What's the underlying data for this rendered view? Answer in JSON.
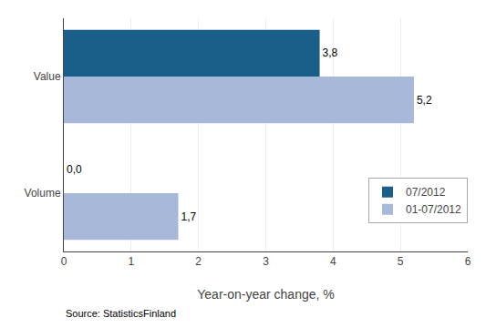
{
  "chart_data": {
    "type": "bar",
    "orientation": "horizontal",
    "categories": [
      "Volume",
      "Value"
    ],
    "series": [
      {
        "name": "07/2012",
        "color": "#1a5e8a",
        "values": [
          0.0,
          3.8
        ],
        "value_labels": [
          "0,0",
          "3,8"
        ]
      },
      {
        "name": "01-07/2012",
        "color": "#a8b8d8",
        "values": [
          1.7,
          5.2
        ],
        "value_labels": [
          "1,7",
          "5,2"
        ]
      }
    ],
    "xlabel": "Year-on-year change, %",
    "xlim": [
      0,
      6
    ],
    "xticks": [
      0,
      1,
      2,
      3,
      4,
      5,
      6
    ],
    "grid": true,
    "legend": "lower right",
    "data_labels": true,
    "annotations": [
      "Source: StatisticsFinland"
    ]
  }
}
